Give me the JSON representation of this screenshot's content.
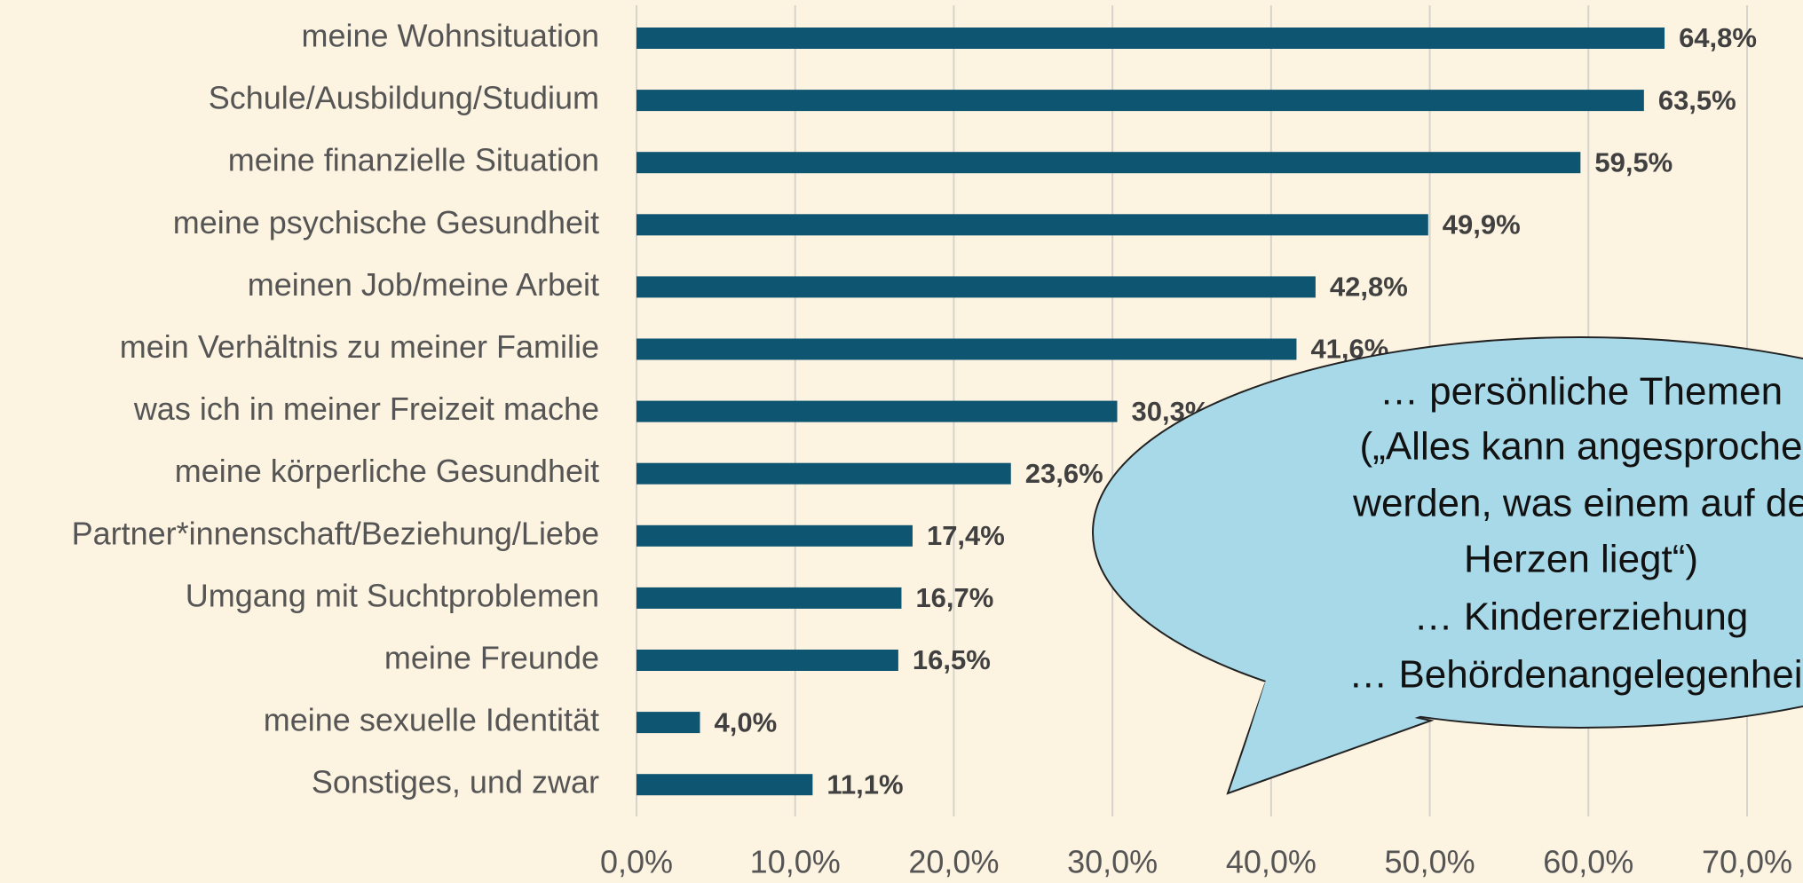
{
  "chart_data": {
    "type": "bar",
    "orientation": "horizontal",
    "categories": [
      "meine Wohnsituation",
      "Schule/Ausbildung/Studium",
      "meine finanzielle Situation",
      "meine psychische Gesundheit",
      "meinen Job/meine Arbeit",
      "mein Verhältnis zu meiner Familie",
      "was ich in meiner Freizeit mache",
      "meine körperliche Gesundheit",
      "Partner*innenschaft/Beziehung/Liebe",
      "Umgang mit Suchtproblemen",
      "meine Freunde",
      "meine sexuelle Identität",
      "Sonstiges, und zwar"
    ],
    "values": [
      64.8,
      63.5,
      59.5,
      49.9,
      42.8,
      41.6,
      30.3,
      23.6,
      17.4,
      16.7,
      16.5,
      4.0,
      11.1
    ],
    "value_labels": [
      "64,8%",
      "63,5%",
      "59,5%",
      "49,9%",
      "42,8%",
      "41,6%",
      "30,3%",
      "23,6%",
      "17,4%",
      "16,7%",
      "16,5%",
      "4,0%",
      "11,1%"
    ],
    "color": "#0e5572",
    "xlim": [
      0,
      70
    ],
    "xticks": [
      {
        "value": 0,
        "label": "0,0%"
      },
      {
        "value": 10,
        "label": "10,0%"
      },
      {
        "value": 20,
        "label": "20,0%"
      },
      {
        "value": 30,
        "label": "30,0%"
      },
      {
        "value": 40,
        "label": "40,0%"
      },
      {
        "value": 50,
        "label": "50,0%"
      },
      {
        "value": 60,
        "label": "60,0%"
      },
      {
        "value": 70,
        "label": "70,0%"
      }
    ],
    "grid": true,
    "annotation": [
      "… persönliche Themen",
      "(„Alles kann angesproche",
      "werden, was einem auf de",
      "Herzen liegt“)",
      "… Kindererziehung",
      "… Behördenangelegenheit"
    ]
  }
}
